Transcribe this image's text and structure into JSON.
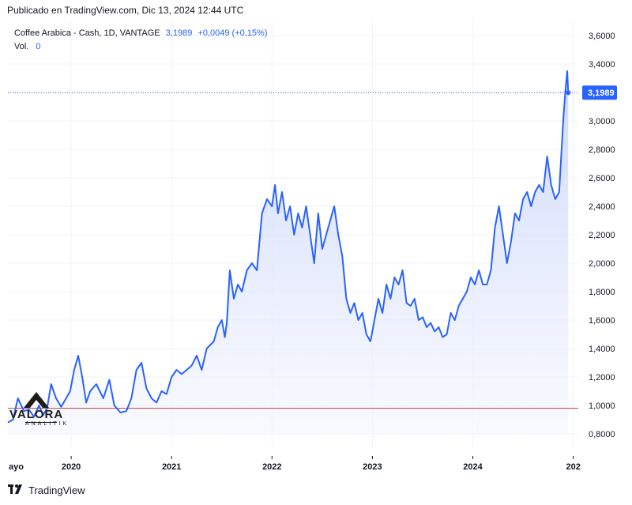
{
  "header": {
    "published": "Publicado en TradingView.com, Dic 13, 2024 12:44 UTC"
  },
  "legend": {
    "symbol": "Coffee Arabica - Cash, 1D, VANTAGE",
    "last": "3,1989",
    "change": "+0,0049 (+0,15%)",
    "vol_label": "Vol.",
    "vol_value": "0"
  },
  "price_tag": "3,1989",
  "footer": {
    "brand": "TradingView"
  },
  "watermark": {
    "main": "VALORA",
    "sub": "ANALITIK"
  },
  "colors": {
    "line": "#2962ff",
    "fill_top": "#c8d4fb",
    "fill_bottom": "#f4f6fe",
    "baseline": "#b24545"
  },
  "chart_data": {
    "type": "area",
    "xlabel": "",
    "ylabel": "",
    "x_ticks": [
      "ayo",
      "2020",
      "2021",
      "2022",
      "2023",
      "2024",
      "202"
    ],
    "x_tick_years": [
      2019.37,
      2020.0,
      2021.0,
      2022.0,
      2023.0,
      2024.0,
      2025.0
    ],
    "y_ticks": [
      "3,6000",
      "3,4000",
      "3,2000",
      "3,0000",
      "2,8000",
      "2,6000",
      "2,4000",
      "2,2000",
      "2,0000",
      "1,8000",
      "1,6000",
      "1,4000",
      "1,2000",
      "1,0000",
      "0,8000"
    ],
    "y_tick_values": [
      3.6,
      3.4,
      3.2,
      3.0,
      2.8,
      2.6,
      2.4,
      2.2,
      2.0,
      1.8,
      1.6,
      1.4,
      1.2,
      1.0,
      0.8
    ],
    "ylim": [
      0.7,
      3.7
    ],
    "xlim": [
      2019.37,
      2025.05
    ],
    "baseline": 0.98,
    "last_value": 3.1989,
    "grid": true,
    "series": [
      {
        "x": [
          2019.37,
          2019.42,
          2019.47,
          2019.53,
          2019.58,
          2019.63,
          2019.68,
          2019.72,
          2019.76,
          2019.8,
          2019.85,
          2019.9,
          2019.95,
          2019.99,
          2020.03,
          2020.07,
          2020.11,
          2020.15,
          2020.19,
          2020.25,
          2020.32,
          2020.38,
          2020.43,
          2020.49,
          2020.55,
          2020.6,
          2020.65,
          2020.7,
          2020.75,
          2020.8,
          2020.85,
          2020.9,
          2020.95,
          2021.0,
          2021.05,
          2021.1,
          2021.15,
          2021.2,
          2021.25,
          2021.3,
          2021.35,
          2021.42,
          2021.46,
          2021.5,
          2021.53,
          2021.55,
          2021.58,
          2021.62,
          2021.66,
          2021.7,
          2021.75,
          2021.8,
          2021.85,
          2021.9,
          2021.95,
          2022.0,
          2022.03,
          2022.06,
          2022.1,
          2022.14,
          2022.18,
          2022.22,
          2022.26,
          2022.3,
          2022.34,
          2022.38,
          2022.42,
          2022.46,
          2022.5,
          2022.54,
          2022.58,
          2022.62,
          2022.66,
          2022.7,
          2022.74,
          2022.78,
          2022.82,
          2022.86,
          2022.9,
          2022.94,
          2022.98,
          2023.02,
          2023.06,
          2023.1,
          2023.14,
          2023.18,
          2023.22,
          2023.26,
          2023.3,
          2023.34,
          2023.38,
          2023.42,
          2023.46,
          2023.5,
          2023.54,
          2023.58,
          2023.62,
          2023.66,
          2023.7,
          2023.74,
          2023.78,
          2023.82,
          2023.86,
          2023.9,
          2023.94,
          2023.98,
          2024.02,
          2024.06,
          2024.1,
          2024.14,
          2024.18,
          2024.22,
          2024.26,
          2024.3,
          2024.34,
          2024.38,
          2024.42,
          2024.46,
          2024.5,
          2024.54,
          2024.58,
          2024.62,
          2024.66,
          2024.7,
          2024.74,
          2024.78,
          2024.82,
          2024.86,
          2024.9,
          2024.92,
          2024.94,
          2024.95
        ],
        "values": [
          0.88,
          0.9,
          1.05,
          0.96,
          0.97,
          0.92,
          1.0,
          0.93,
          0.98,
          1.15,
          1.05,
          0.99,
          1.05,
          1.1,
          1.25,
          1.35,
          1.2,
          1.02,
          1.1,
          1.15,
          1.05,
          1.18,
          1.0,
          0.95,
          0.96,
          1.05,
          1.25,
          1.3,
          1.12,
          1.05,
          1.02,
          1.1,
          1.08,
          1.2,
          1.25,
          1.22,
          1.25,
          1.28,
          1.35,
          1.25,
          1.4,
          1.45,
          1.55,
          1.6,
          1.48,
          1.58,
          1.95,
          1.75,
          1.85,
          1.8,
          1.95,
          2.0,
          1.95,
          2.35,
          2.45,
          2.4,
          2.55,
          2.35,
          2.5,
          2.3,
          2.4,
          2.2,
          2.35,
          2.25,
          2.4,
          2.2,
          2.0,
          2.35,
          2.1,
          2.2,
          2.3,
          2.4,
          2.2,
          2.05,
          1.75,
          1.65,
          1.72,
          1.6,
          1.65,
          1.5,
          1.45,
          1.6,
          1.75,
          1.65,
          1.85,
          1.75,
          1.9,
          1.85,
          1.95,
          1.72,
          1.7,
          1.75,
          1.6,
          1.62,
          1.55,
          1.58,
          1.52,
          1.55,
          1.48,
          1.5,
          1.65,
          1.6,
          1.7,
          1.75,
          1.8,
          1.9,
          1.85,
          1.95,
          1.85,
          1.85,
          1.95,
          2.25,
          2.4,
          2.2,
          2.0,
          2.15,
          2.35,
          2.3,
          2.45,
          2.5,
          2.4,
          2.5,
          2.55,
          2.5,
          2.75,
          2.55,
          2.45,
          2.5,
          3.0,
          3.2,
          3.35,
          3.1989
        ]
      }
    ]
  }
}
